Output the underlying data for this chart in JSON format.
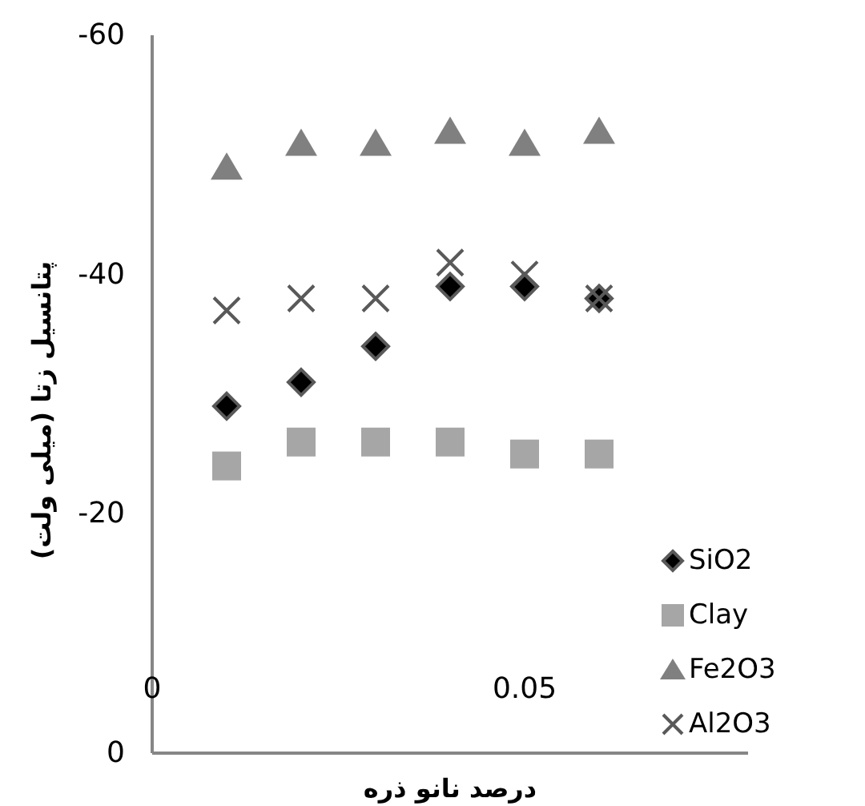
{
  "chart_data": {
    "type": "scatter",
    "xlabel": "درصد نانو ذره",
    "ylabel": "پتانسیل زتا (میلی ولت)",
    "x": [
      0.01,
      0.02,
      0.03,
      0.04,
      0.05,
      0.06
    ],
    "xlim": [
      0,
      0.08
    ],
    "xticks": [
      0,
      0.05
    ],
    "ylim": [
      0,
      -60
    ],
    "yticks": [
      0,
      -20,
      -40,
      -60
    ],
    "grid": false,
    "legend": "bottom right",
    "series": [
      {
        "name": "SiO2",
        "color": "#000000",
        "marker": "diamond",
        "values": [
          -29,
          -31,
          -34,
          -39,
          -39,
          -38
        ]
      },
      {
        "name": "Clay",
        "color": "#a6a6a6",
        "marker": "square",
        "values": [
          -24,
          -26,
          -26,
          -26,
          -25,
          -25
        ]
      },
      {
        "name": "Fe2O3",
        "color": "#808080",
        "marker": "triangle",
        "values": [
          -49,
          -51,
          -51,
          -52,
          -51,
          -52
        ]
      },
      {
        "name": "Al2O3",
        "color": "#595959",
        "marker": "cross",
        "values": [
          -37,
          -38,
          -38,
          -41,
          -40,
          -38
        ]
      }
    ]
  }
}
